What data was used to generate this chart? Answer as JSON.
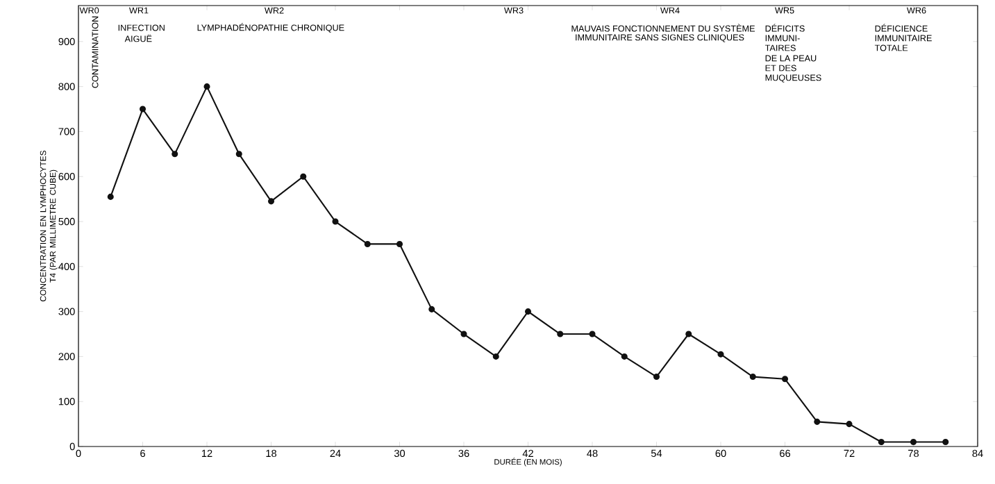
{
  "chart_data": {
    "type": "line",
    "x": [
      3,
      6,
      9,
      12,
      15,
      18,
      21,
      24,
      27,
      30,
      33,
      36,
      39,
      42,
      45,
      48,
      51,
      54,
      57,
      60,
      63,
      66,
      69,
      72,
      75,
      78,
      81
    ],
    "values": [
      555,
      750,
      650,
      800,
      650,
      545,
      600,
      500,
      450,
      450,
      305,
      250,
      200,
      300,
      250,
      250,
      200,
      155,
      250,
      205,
      155,
      150,
      55,
      50,
      10,
      10,
      10
    ],
    "color": "#111111",
    "marker": "circle",
    "line_style": "solid",
    "grid": false,
    "xlabel": "DURÉE (EN MOIS)",
    "ylabel": "CONCENTRATION EN LYMPHOCYTES T4 (PAR MILLIMETRE CUBE)",
    "xlim": [
      0,
      84
    ],
    "ylim": [
      0,
      980
    ],
    "xticks": [
      0,
      6,
      12,
      18,
      24,
      30,
      36,
      42,
      48,
      54,
      60,
      66,
      72,
      78,
      84
    ],
    "yticks": [
      0,
      100,
      200,
      300,
      400,
      500,
      600,
      700,
      800,
      900
    ],
    "annotations": [
      "WR0",
      "CONTAMINATION",
      "WR1",
      "INFECTION",
      "AIGUË",
      "WR2",
      "LYMPHADÉNOPATHIE CHRONIQUE",
      "WR3",
      "WR4",
      "MAUVAIS FONCTIONNEMENT DU SYSTÈME",
      "IMMUNITAIRE SANS SIGNES CLINIQUES",
      "WR5",
      "DÉFICITS",
      "IMMUNI-",
      "TAIRES",
      "DE LA PEAU",
      "ET DES",
      "MUQUEUSES",
      "WR6",
      "DÉFICIENCE",
      "IMMUNITAIRE",
      "TOTALE"
    ]
  }
}
